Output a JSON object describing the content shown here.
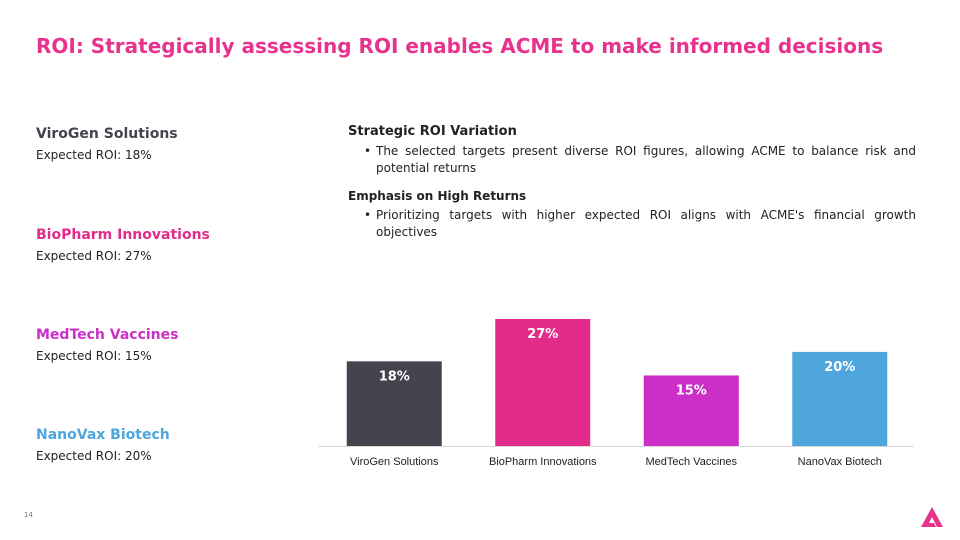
{
  "title": "ROI: Strategically assessing ROI enables ACME to make informed decisions",
  "companies": [
    {
      "name": "ViroGen Solutions",
      "roi": "Expected ROI: 18%",
      "color": "#44434e"
    },
    {
      "name": "BioPharm Innovations",
      "roi": "Expected ROI: 27%",
      "color": "#e22c89"
    },
    {
      "name": "MedTech Vaccines",
      "roi": "Expected ROI: 15%",
      "color": "#cc2fc7"
    },
    {
      "name": "NanoVax Biotech",
      "roi": "Expected ROI: 20%",
      "color": "#4ea6dc"
    }
  ],
  "sections": [
    {
      "title": "Strategic ROI Variation",
      "bullet": "The selected targets present diverse ROI figures, allowing ACME to balance risk and potential returns"
    },
    {
      "title": "Emphasis on High Returns",
      "bullet": "Prioritizing targets with higher expected ROI aligns with ACME's financial growth objectives"
    }
  ],
  "chart_data": {
    "type": "bar",
    "categories": [
      "ViroGen Solutions",
      "BioPharm Innovations",
      "MedTech Vaccines",
      "NanoVax Biotech"
    ],
    "values": [
      18,
      27,
      15,
      20
    ],
    "labels": [
      "18%",
      "27%",
      "15%",
      "20%"
    ],
    "colors": [
      "#44434e",
      "#e22c89",
      "#cc2fc7",
      "#4ea6dc"
    ],
    "ylim": [
      0,
      27
    ],
    "grid": false,
    "legend": "none"
  },
  "page_number": "14",
  "logo_color": "#e8338e"
}
